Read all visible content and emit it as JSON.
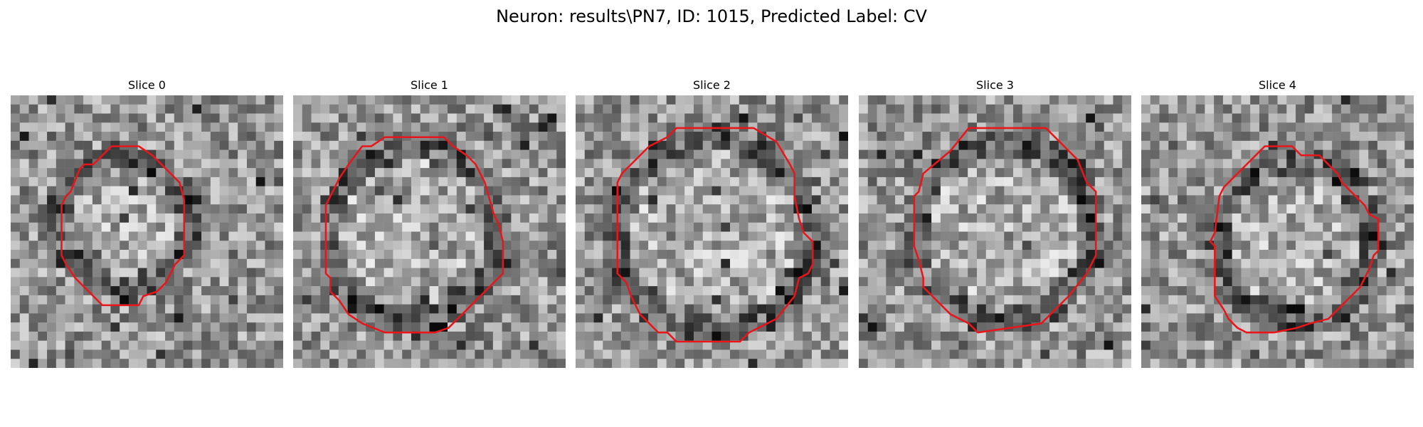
{
  "figure": {
    "title": "Neuron: results\\PN7, ID: 1015, Predicted Label: CV",
    "contour_color": "#e8161b"
  },
  "panels": [
    {
      "title": "Slice 0"
    },
    {
      "title": "Slice 1"
    },
    {
      "title": "Slice 2"
    },
    {
      "title": "Slice 3"
    },
    {
      "title": "Slice 4"
    }
  ]
}
